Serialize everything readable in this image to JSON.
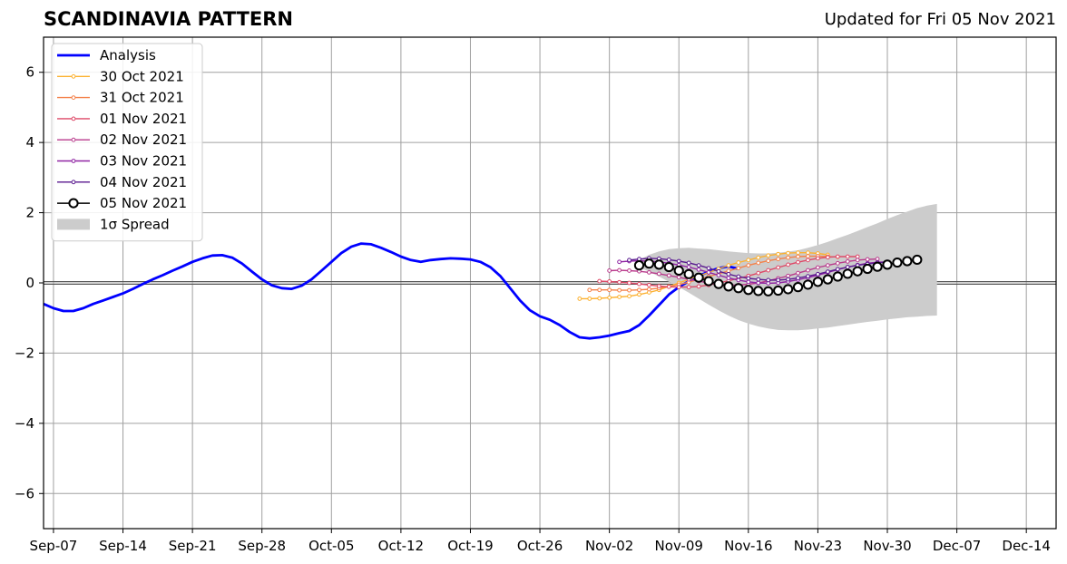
{
  "chart_data": {
    "type": "line",
    "title": "SCANDINAVIA PATTERN",
    "subtitle": "Updated for Fri 05 Nov 2021",
    "xlabel": "",
    "ylabel": "",
    "x_range": [
      "2021-09-06",
      "2021-12-17"
    ],
    "ylim": [
      -7,
      7
    ],
    "y_ticks": [
      -6,
      -4,
      -2,
      0,
      2,
      4,
      6
    ],
    "x_ticks": [
      {
        "date": "2021-09-07",
        "label": "Sep-07"
      },
      {
        "date": "2021-09-14",
        "label": "Sep-14"
      },
      {
        "date": "2021-09-21",
        "label": "Sep-21"
      },
      {
        "date": "2021-09-28",
        "label": "Sep-28"
      },
      {
        "date": "2021-10-05",
        "label": "Oct-05"
      },
      {
        "date": "2021-10-12",
        "label": "Oct-12"
      },
      {
        "date": "2021-10-19",
        "label": "Oct-19"
      },
      {
        "date": "2021-10-26",
        "label": "Oct-26"
      },
      {
        "date": "2021-11-02",
        "label": "Nov-02"
      },
      {
        "date": "2021-11-09",
        "label": "Nov-09"
      },
      {
        "date": "2021-11-16",
        "label": "Nov-16"
      },
      {
        "date": "2021-11-23",
        "label": "Nov-23"
      },
      {
        "date": "2021-11-30",
        "label": "Nov-30"
      },
      {
        "date": "2021-12-07",
        "label": "Dec-07"
      },
      {
        "date": "2021-12-14",
        "label": "Dec-14"
      }
    ],
    "grid": true,
    "legend_position": "top-left",
    "analysis": {
      "name": "Analysis",
      "color": "#0000ff",
      "start": "2021-09-06",
      "values": [
        -0.6,
        -0.72,
        -0.8,
        -0.8,
        -0.72,
        -0.6,
        -0.5,
        -0.4,
        -0.3,
        -0.17,
        -0.03,
        0.1,
        0.22,
        0.35,
        0.47,
        0.6,
        0.7,
        0.78,
        0.79,
        0.72,
        0.55,
        0.32,
        0.1,
        -0.07,
        -0.15,
        -0.17,
        -0.08,
        0.1,
        0.35,
        0.6,
        0.85,
        1.03,
        1.12,
        1.1,
        1.0,
        0.88,
        0.75,
        0.65,
        0.6,
        0.65,
        0.68,
        0.7,
        0.69,
        0.67,
        0.6,
        0.45,
        0.2,
        -0.15,
        -0.5,
        -0.78,
        -0.95,
        -1.05,
        -1.2,
        -1.4,
        -1.55,
        -1.58,
        -1.55,
        -1.5,
        -1.43,
        -1.37,
        -1.2,
        -0.93,
        -0.63,
        -0.33,
        -0.12,
        0.05,
        0.2,
        0.32,
        0.42,
        0.47,
        0.4
      ]
    },
    "forecasts": [
      {
        "name": "30 Oct 2021",
        "color": "#fcb130",
        "start": "2021-10-30",
        "values": [
          -0.45,
          -0.45,
          -0.44,
          -0.42,
          -0.4,
          -0.38,
          -0.33,
          -0.27,
          -0.2,
          -0.1,
          0.0,
          0.1,
          0.2,
          0.3,
          0.4,
          0.5,
          0.58,
          0.65,
          0.72,
          0.78,
          0.82,
          0.85,
          0.86,
          0.86,
          0.84,
          0.8
        ]
      },
      {
        "name": "31 Oct 2021",
        "color": "#f4814a",
        "start": "2021-10-31",
        "values": [
          -0.2,
          -0.2,
          -0.2,
          -0.21,
          -0.21,
          -0.2,
          -0.18,
          -0.15,
          -0.1,
          -0.05,
          0.02,
          0.1,
          0.18,
          0.26,
          0.34,
          0.42,
          0.5,
          0.57,
          0.63,
          0.68,
          0.72,
          0.75,
          0.76,
          0.76,
          0.75,
          0.74
        ]
      },
      {
        "name": "01 Nov 2021",
        "color": "#de4968",
        "start": "2021-11-01",
        "values": [
          0.05,
          0.04,
          0.02,
          0.0,
          -0.03,
          -0.06,
          -0.09,
          -0.11,
          -0.12,
          -0.12,
          -0.1,
          -0.06,
          0.0,
          0.06,
          0.13,
          0.2,
          0.28,
          0.36,
          0.44,
          0.52,
          0.59,
          0.65,
          0.7,
          0.73,
          0.75,
          0.75,
          0.75
        ]
      },
      {
        "name": "02 Nov 2021",
        "color": "#b93a8c",
        "start": "2021-11-02",
        "values": [
          0.35,
          0.36,
          0.35,
          0.33,
          0.3,
          0.26,
          0.21,
          0.16,
          0.1,
          0.05,
          0.0,
          -0.04,
          -0.06,
          -0.06,
          -0.04,
          0.0,
          0.06,
          0.13,
          0.2,
          0.28,
          0.36,
          0.44,
          0.5,
          0.56,
          0.61,
          0.65,
          0.67,
          0.68
        ]
      },
      {
        "name": "03 Nov 2021",
        "color": "#8f24a3",
        "start": "2021-11-03",
        "values": [
          0.6,
          0.62,
          0.63,
          0.62,
          0.6,
          0.56,
          0.51,
          0.45,
          0.38,
          0.3,
          0.22,
          0.14,
          0.08,
          0.03,
          0.0,
          -0.01,
          0.0,
          0.04,
          0.09,
          0.15,
          0.22,
          0.3,
          0.38,
          0.45,
          0.51,
          0.56,
          0.59,
          0.6
        ]
      },
      {
        "name": "04 Nov 2021",
        "color": "#5a1a8f",
        "start": "2021-11-04",
        "values": [
          0.65,
          0.68,
          0.7,
          0.69,
          0.66,
          0.62,
          0.57,
          0.5,
          0.42,
          0.33,
          0.25,
          0.18,
          0.13,
          0.1,
          0.08,
          0.08,
          0.1,
          0.14,
          0.19,
          0.25,
          0.32,
          0.39,
          0.45,
          0.5,
          0.54,
          0.57,
          0.6
        ]
      }
    ],
    "latest_forecast": {
      "name": "05 Nov 2021",
      "color": "#000000",
      "start": "2021-11-05",
      "values": [
        0.5,
        0.55,
        0.52,
        0.45,
        0.35,
        0.25,
        0.15,
        0.05,
        -0.03,
        -0.1,
        -0.15,
        -0.2,
        -0.23,
        -0.24,
        -0.22,
        -0.18,
        -0.12,
        -0.05,
        0.03,
        0.1,
        0.18,
        0.26,
        0.33,
        0.4,
        0.46,
        0.52,
        0.58,
        0.62,
        0.66
      ]
    },
    "spread": {
      "name": "1σ Spread",
      "color": "#cccccc",
      "start": "2021-11-05",
      "upper": [
        0.65,
        0.8,
        0.9,
        0.96,
        0.99,
        1.0,
        0.98,
        0.96,
        0.93,
        0.9,
        0.87,
        0.85,
        0.84,
        0.84,
        0.86,
        0.89,
        0.93,
        1.0,
        1.08,
        1.17,
        1.27,
        1.37,
        1.48,
        1.59,
        1.7,
        1.82,
        1.93,
        2.03,
        2.13,
        2.2,
        2.25
      ],
      "lower": [
        0.45,
        0.32,
        0.18,
        0.03,
        -0.12,
        -0.28,
        -0.45,
        -0.62,
        -0.78,
        -0.93,
        -1.06,
        -1.16,
        -1.24,
        -1.3,
        -1.34,
        -1.35,
        -1.35,
        -1.33,
        -1.3,
        -1.27,
        -1.23,
        -1.19,
        -1.15,
        -1.11,
        -1.08,
        -1.04,
        -1.01,
        -0.98,
        -0.96,
        -0.94,
        -0.93
      ]
    }
  }
}
